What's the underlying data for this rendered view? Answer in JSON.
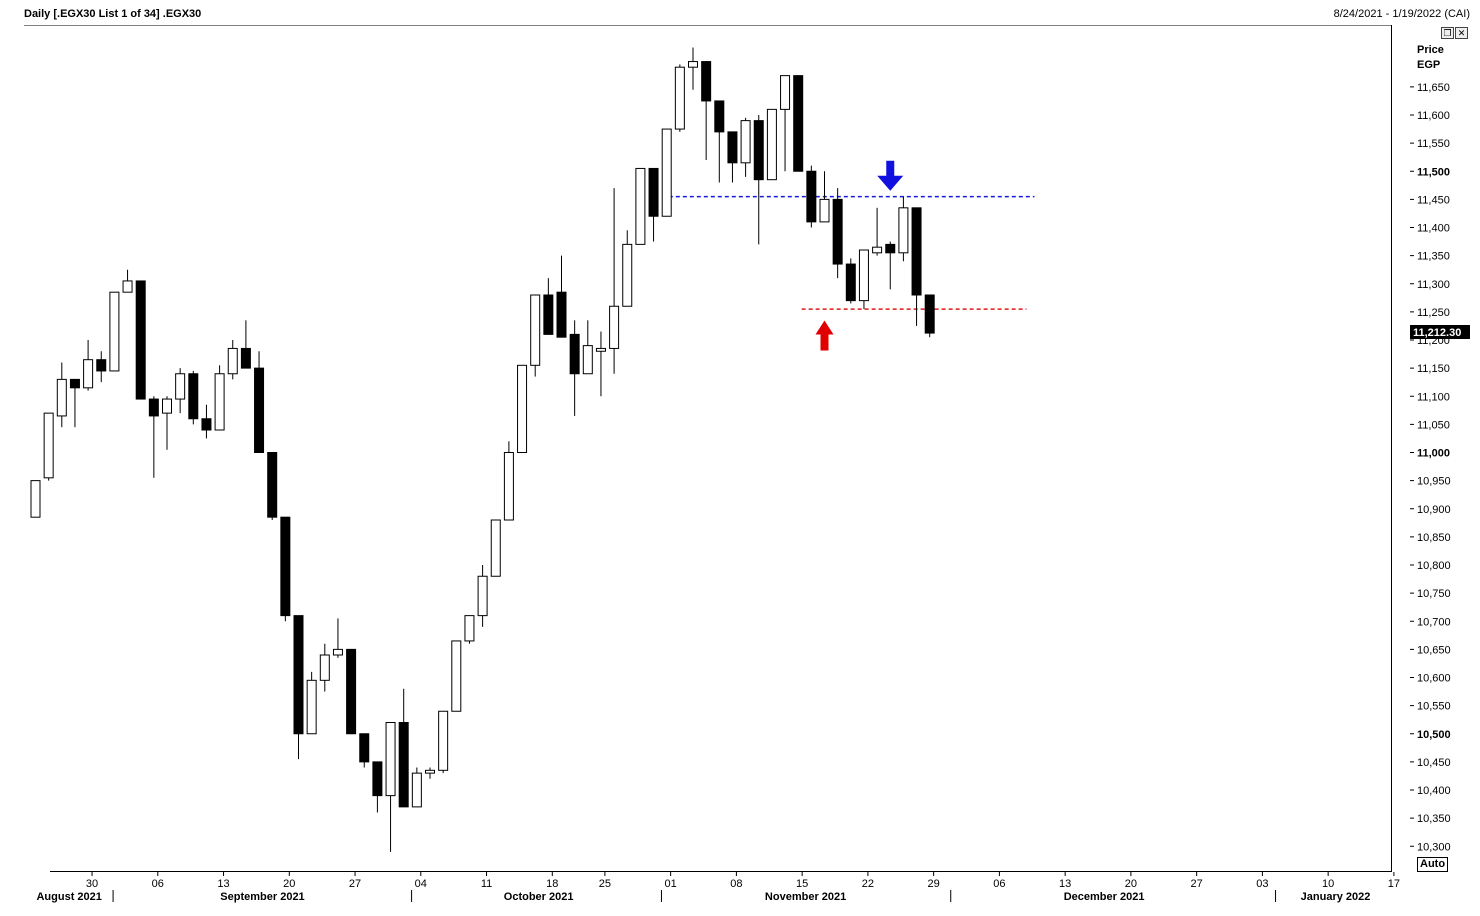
{
  "header": {
    "title": "Daily [.EGX30 List 1 of 34] .EGX30",
    "date_range": "8/24/2021 - 1/19/2022 (CAI)"
  },
  "window_buttons": {
    "restore_icon": "restore-window-icon",
    "close_icon": "close-icon"
  },
  "price_axis": {
    "title_line1": "Price",
    "title_line2": "EGP"
  },
  "auto_button_label": "Auto",
  "last_price_label": "11,212.30",
  "chart_data": {
    "type": "candlestick",
    "title": "",
    "ylim": [
      10300,
      11700
    ],
    "y_ticks": [
      {
        "value": 11650,
        "label": "11,650",
        "bold": false
      },
      {
        "value": 11600,
        "label": "11,600",
        "bold": false
      },
      {
        "value": 11550,
        "label": "11,550",
        "bold": false
      },
      {
        "value": 11500,
        "label": "11,500",
        "bold": true
      },
      {
        "value": 11450,
        "label": "11,450",
        "bold": false
      },
      {
        "value": 11400,
        "label": "11,400",
        "bold": false
      },
      {
        "value": 11350,
        "label": "11,350",
        "bold": false
      },
      {
        "value": 11300,
        "label": "11,300",
        "bold": false
      },
      {
        "value": 11250,
        "label": "11,250",
        "bold": false
      },
      {
        "value": 11200,
        "label": "11,200",
        "bold": false
      },
      {
        "value": 11150,
        "label": "11,150",
        "bold": false
      },
      {
        "value": 11100,
        "label": "11,100",
        "bold": false
      },
      {
        "value": 11050,
        "label": "11,050",
        "bold": false
      },
      {
        "value": 11000,
        "label": "11,000",
        "bold": true
      },
      {
        "value": 10950,
        "label": "10,950",
        "bold": false
      },
      {
        "value": 10900,
        "label": "10,900",
        "bold": false
      },
      {
        "value": 10850,
        "label": "10,850",
        "bold": false
      },
      {
        "value": 10800,
        "label": "10,800",
        "bold": false
      },
      {
        "value": 10750,
        "label": "10,750",
        "bold": false
      },
      {
        "value": 10700,
        "label": "10,700",
        "bold": false
      },
      {
        "value": 10650,
        "label": "10,650",
        "bold": false
      },
      {
        "value": 10600,
        "label": "10,600",
        "bold": false
      },
      {
        "value": 10550,
        "label": "10,550",
        "bold": false
      },
      {
        "value": 10500,
        "label": "10,500",
        "bold": true
      },
      {
        "value": 10450,
        "label": "10,450",
        "bold": false
      },
      {
        "value": 10400,
        "label": "10,400",
        "bold": false
      },
      {
        "value": 10350,
        "label": "10,350",
        "bold": false
      },
      {
        "value": 10300,
        "label": "10,300",
        "bold": false
      }
    ],
    "x_day_ticks": [
      {
        "label": "30",
        "idx": 4.3
      },
      {
        "label": "06",
        "idx": 9.3
      },
      {
        "label": "13",
        "idx": 14.3
      },
      {
        "label": "20",
        "idx": 19.3
      },
      {
        "label": "27",
        "idx": 24.3
      },
      {
        "label": "04",
        "idx": 29.3
      },
      {
        "label": "11",
        "idx": 34.3
      },
      {
        "label": "18",
        "idx": 39.3
      },
      {
        "label": "25",
        "idx": 43.3
      },
      {
        "label": "01",
        "idx": 48.3
      },
      {
        "label": "08",
        "idx": 53.3
      },
      {
        "label": "15",
        "idx": 58.3
      },
      {
        "label": "22",
        "idx": 63.3
      },
      {
        "label": "29",
        "idx": 68.3
      },
      {
        "label": "06",
        "idx": 73.3
      },
      {
        "label": "13",
        "idx": 78.3
      },
      {
        "label": "20",
        "idx": 83.3
      },
      {
        "label": "27",
        "idx": 88.3
      },
      {
        "label": "03",
        "idx": 93.3
      },
      {
        "label": "10",
        "idx": 98.3
      },
      {
        "label": "17",
        "idx": 103.3
      }
    ],
    "x_month_labels": [
      {
        "label": "August 2021",
        "idx": 2.6
      },
      {
        "label": "September 2021",
        "idx": 17.3
      },
      {
        "label": "October 2021",
        "idx": 38.3
      },
      {
        "label": "November 2021",
        "idx": 58.6
      },
      {
        "label": "December 2021",
        "idx": 81.3
      },
      {
        "label": "January 2022",
        "idx": 98.9
      }
    ],
    "month_separators": [
      5.9,
      28.6,
      47.6,
      69.6,
      94.3
    ],
    "candles": [
      {
        "o": 10885,
        "h": 10950,
        "l": 10885,
        "c": 10950
      },
      {
        "o": 10955,
        "h": 11070,
        "l": 10950,
        "c": 11070
      },
      {
        "o": 11065,
        "h": 11160,
        "l": 11045,
        "c": 11130
      },
      {
        "o": 11130,
        "h": 11130,
        "l": 11045,
        "c": 11115
      },
      {
        "o": 11115,
        "h": 11200,
        "l": 11110,
        "c": 11165
      },
      {
        "o": 11165,
        "h": 11180,
        "l": 11125,
        "c": 11145
      },
      {
        "o": 11145,
        "h": 11285,
        "l": 11145,
        "c": 11285
      },
      {
        "o": 11285,
        "h": 11325,
        "l": 11285,
        "c": 11305
      },
      {
        "o": 11305,
        "h": 11305,
        "l": 11095,
        "c": 11095
      },
      {
        "o": 11095,
        "h": 11100,
        "l": 10955,
        "c": 11065
      },
      {
        "o": 11070,
        "h": 11100,
        "l": 11005,
        "c": 11095
      },
      {
        "o": 11095,
        "h": 11150,
        "l": 11070,
        "c": 11140
      },
      {
        "o": 11140,
        "h": 11145,
        "l": 11050,
        "c": 11060
      },
      {
        "o": 11060,
        "h": 11085,
        "l": 11025,
        "c": 11040
      },
      {
        "o": 11040,
        "h": 11155,
        "l": 11040,
        "c": 11140
      },
      {
        "o": 11140,
        "h": 11200,
        "l": 11130,
        "c": 11185
      },
      {
        "o": 11185,
        "h": 11235,
        "l": 11150,
        "c": 11150
      },
      {
        "o": 11150,
        "h": 11180,
        "l": 11000,
        "c": 11000
      },
      {
        "o": 11000,
        "h": 11000,
        "l": 10880,
        "c": 10885
      },
      {
        "o": 10885,
        "h": 10885,
        "l": 10700,
        "c": 10710
      },
      {
        "o": 10710,
        "h": 10710,
        "l": 10455,
        "c": 10500
      },
      {
        "o": 10500,
        "h": 10610,
        "l": 10500,
        "c": 10595
      },
      {
        "o": 10595,
        "h": 10660,
        "l": 10575,
        "c": 10640
      },
      {
        "o": 10640,
        "h": 10705,
        "l": 10635,
        "c": 10650
      },
      {
        "o": 10650,
        "h": 10650,
        "l": 10500,
        "c": 10500
      },
      {
        "o": 10500,
        "h": 10500,
        "l": 10440,
        "c": 10450
      },
      {
        "o": 10450,
        "h": 10450,
        "l": 10360,
        "c": 10390
      },
      {
        "o": 10390,
        "h": 10520,
        "l": 10290,
        "c": 10520
      },
      {
        "o": 10520,
        "h": 10580,
        "l": 10370,
        "c": 10370
      },
      {
        "o": 10370,
        "h": 10440,
        "l": 10370,
        "c": 10430
      },
      {
        "o": 10430,
        "h": 10440,
        "l": 10420,
        "c": 10435
      },
      {
        "o": 10435,
        "h": 10540,
        "l": 10430,
        "c": 10540
      },
      {
        "o": 10540,
        "h": 10665,
        "l": 10540,
        "c": 10665
      },
      {
        "o": 10665,
        "h": 10710,
        "l": 10660,
        "c": 10710
      },
      {
        "o": 10710,
        "h": 10800,
        "l": 10690,
        "c": 10780
      },
      {
        "o": 10780,
        "h": 10880,
        "l": 10780,
        "c": 10880
      },
      {
        "o": 10880,
        "h": 11020,
        "l": 10880,
        "c": 11000
      },
      {
        "o": 11000,
        "h": 11155,
        "l": 11000,
        "c": 11155
      },
      {
        "o": 11155,
        "h": 11280,
        "l": 11135,
        "c": 11280
      },
      {
        "o": 11280,
        "h": 11310,
        "l": 11210,
        "c": 11210
      },
      {
        "o": 11285,
        "h": 11350,
        "l": 11210,
        "c": 11205
      },
      {
        "o": 11210,
        "h": 11235,
        "l": 11065,
        "c": 11140
      },
      {
        "o": 11140,
        "h": 11235,
        "l": 11140,
        "c": 11190
      },
      {
        "o": 11180,
        "h": 11215,
        "l": 11100,
        "c": 11185
      },
      {
        "o": 11185,
        "h": 11470,
        "l": 11140,
        "c": 11260
      },
      {
        "o": 11260,
        "h": 11395,
        "l": 11260,
        "c": 11370
      },
      {
        "o": 11370,
        "h": 11500,
        "l": 11370,
        "c": 11505
      },
      {
        "o": 11505,
        "h": 11505,
        "l": 11375,
        "c": 11420
      },
      {
        "o": 11420,
        "h": 11570,
        "l": 11420,
        "c": 11575
      },
      {
        "o": 11575,
        "h": 11690,
        "l": 11570,
        "c": 11685
      },
      {
        "o": 11685,
        "h": 11720,
        "l": 11645,
        "c": 11695
      },
      {
        "o": 11695,
        "h": 11695,
        "l": 11520,
        "c": 11625
      },
      {
        "o": 11625,
        "h": 11625,
        "l": 11480,
        "c": 11570
      },
      {
        "o": 11570,
        "h": 11570,
        "l": 11480,
        "c": 11515
      },
      {
        "o": 11515,
        "h": 11595,
        "l": 11490,
        "c": 11590
      },
      {
        "o": 11590,
        "h": 11600,
        "l": 11370,
        "c": 11485
      },
      {
        "o": 11485,
        "h": 11610,
        "l": 11485,
        "c": 11610
      },
      {
        "o": 11610,
        "h": 11670,
        "l": 11500,
        "c": 11670
      },
      {
        "o": 11670,
        "h": 11670,
        "l": 11500,
        "c": 11500
      },
      {
        "o": 11500,
        "h": 11510,
        "l": 11400,
        "c": 11410
      },
      {
        "o": 11410,
        "h": 11500,
        "l": 11410,
        "c": 11450
      },
      {
        "o": 11450,
        "h": 11470,
        "l": 11310,
        "c": 11335
      },
      {
        "o": 11335,
        "h": 11345,
        "l": 11265,
        "c": 11270
      },
      {
        "o": 11270,
        "h": 11360,
        "l": 11255,
        "c": 11360
      },
      {
        "o": 11355,
        "h": 11435,
        "l": 11350,
        "c": 11365
      },
      {
        "o": 11370,
        "h": 11375,
        "l": 11290,
        "c": 11355
      },
      {
        "o": 11355,
        "h": 11455,
        "l": 11340,
        "c": 11435
      },
      {
        "o": 11435,
        "h": 11435,
        "l": 11225,
        "c": 11280
      },
      {
        "o": 11280,
        "h": 11280,
        "l": 11205,
        "c": 11212.3
      }
    ],
    "lines": [
      {
        "name": "resistance",
        "value": 11455,
        "from_idx": 48.2,
        "to_idx": 76.0,
        "color": "#1a1adc"
      },
      {
        "name": "support",
        "value": 11255,
        "from_idx": 58.3,
        "to_idx": 75.4,
        "color": "#e01818"
      }
    ],
    "arrows": [
      {
        "name": "down-arrow",
        "direction": "down",
        "idx": 65.0,
        "value": 11460,
        "color": "#1010e0"
      },
      {
        "name": "up-arrow",
        "direction": "up",
        "idx": 60.0,
        "value": 11240,
        "color": "#e00000"
      }
    ]
  }
}
